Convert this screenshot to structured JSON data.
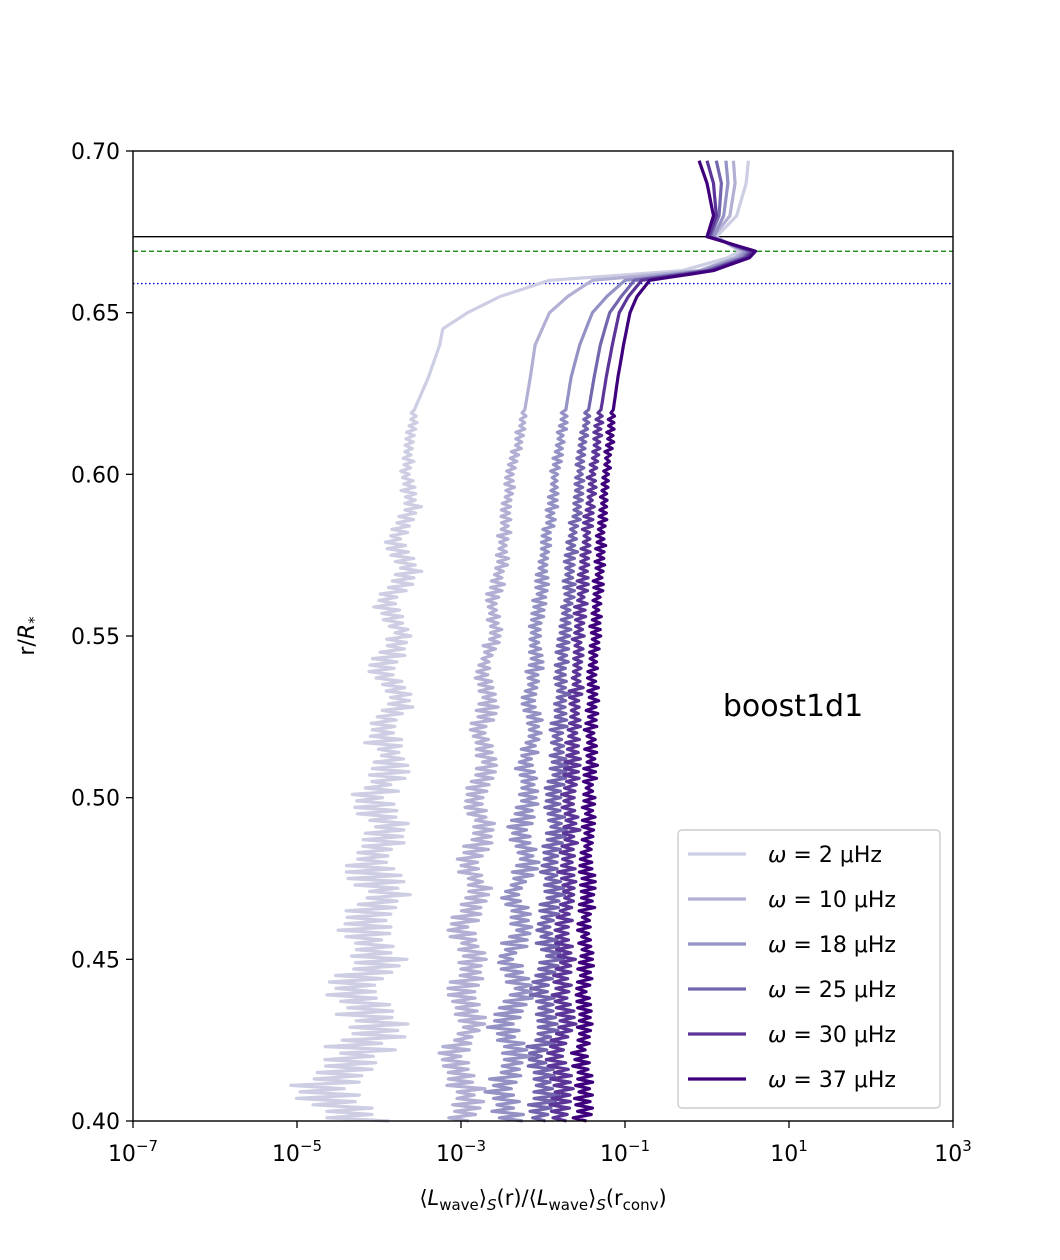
{
  "chart_data": {
    "type": "line",
    "annotation": "boost1d1",
    "xlabel_parts": {
      "open": "⟨",
      "L": "L",
      "sub": "wave",
      "close": "⟩",
      "S": "S",
      "arg_r": "(r)/⟨",
      "arg_rconv": "(r",
      "conv": "conv",
      "end": ")"
    },
    "ylabel_parts": {
      "r": "r/",
      "R": "R",
      "star": "*"
    },
    "x_scale": "log",
    "xlim": [
      1e-07,
      1000
    ],
    "ylim": [
      0.4,
      0.7
    ],
    "x_ticks": [
      {
        "base": "10",
        "exp": "−7",
        "value": 1e-07
      },
      {
        "base": "10",
        "exp": "−5",
        "value": 1e-05
      },
      {
        "base": "10",
        "exp": "−3",
        "value": 0.001
      },
      {
        "base": "10",
        "exp": "−1",
        "value": 0.1
      },
      {
        "base": "10",
        "exp": "1",
        "value": 10
      },
      {
        "base": "10",
        "exp": "3",
        "value": 1000
      }
    ],
    "y_ticks": [
      "0.40",
      "0.45",
      "0.50",
      "0.55",
      "0.60",
      "0.65",
      "0.70"
    ],
    "y_tick_values": [
      0.4,
      0.45,
      0.5,
      0.55,
      0.6,
      0.65,
      0.7
    ],
    "hlines": [
      {
        "y": 0.6735,
        "style": "solid",
        "color": "#000000"
      },
      {
        "y": 0.669,
        "style": "dashed",
        "color": "#008000"
      },
      {
        "y": 0.659,
        "style": "dotted",
        "color": "#0000cc"
      }
    ],
    "legend_position": "lower-right",
    "series": [
      {
        "name": "ω = 2 μHz",
        "symbol": "ω",
        "label": " = 2 μHz",
        "color": "#cdcde4",
        "points": [
          [
            0.4,
            6e-05
          ],
          [
            0.41,
            2e-05
          ],
          [
            0.42,
            5e-05
          ],
          [
            0.43,
            0.0001
          ],
          [
            0.44,
            5e-05
          ],
          [
            0.45,
            0.0001
          ],
          [
            0.46,
            6e-05
          ],
          [
            0.47,
            0.00012
          ],
          [
            0.48,
            7e-05
          ],
          [
            0.49,
            0.00015
          ],
          [
            0.5,
            8e-05
          ],
          [
            0.51,
            0.00016
          ],
          [
            0.52,
            0.0001
          ],
          [
            0.53,
            0.00018
          ],
          [
            0.54,
            0.00011
          ],
          [
            0.55,
            0.0002
          ],
          [
            0.56,
            0.00012
          ],
          [
            0.57,
            0.00024
          ],
          [
            0.58,
            0.00015
          ],
          [
            0.59,
            0.00026
          ],
          [
            0.6,
            0.00021
          ],
          [
            0.61,
            0.00024
          ],
          [
            0.62,
            0.00027
          ],
          [
            0.63,
            0.0004
          ],
          [
            0.64,
            0.00055
          ],
          [
            0.645,
            0.0006
          ],
          [
            0.65,
            0.0012
          ],
          [
            0.655,
            0.003
          ],
          [
            0.66,
            0.012
          ],
          [
            0.663,
            0.5
          ],
          [
            0.667,
            1.8
          ],
          [
            0.669,
            2.5
          ],
          [
            0.6735,
            1.3
          ],
          [
            0.68,
            2.3
          ],
          [
            0.69,
            3.0
          ],
          [
            0.697,
            3.2
          ]
        ]
      },
      {
        "name": "ω = 10 μHz",
        "symbol": "ω",
        "label": " = 10 μHz",
        "color": "#b1afd3",
        "points": [
          [
            0.4,
            0.001
          ],
          [
            0.41,
            0.0012
          ],
          [
            0.42,
            0.0007
          ],
          [
            0.43,
            0.0015
          ],
          [
            0.44,
            0.001
          ],
          [
            0.45,
            0.0015
          ],
          [
            0.46,
            0.001
          ],
          [
            0.47,
            0.0018
          ],
          [
            0.48,
            0.0012
          ],
          [
            0.49,
            0.002
          ],
          [
            0.5,
            0.0014
          ],
          [
            0.51,
            0.0022
          ],
          [
            0.52,
            0.0016
          ],
          [
            0.53,
            0.0023
          ],
          [
            0.54,
            0.0018
          ],
          [
            0.55,
            0.0026
          ],
          [
            0.56,
            0.0024
          ],
          [
            0.57,
            0.003
          ],
          [
            0.58,
            0.0033
          ],
          [
            0.59,
            0.0036
          ],
          [
            0.6,
            0.004
          ],
          [
            0.61,
            0.005
          ],
          [
            0.62,
            0.006
          ],
          [
            0.63,
            0.007
          ],
          [
            0.64,
            0.008
          ],
          [
            0.65,
            0.012
          ],
          [
            0.655,
            0.02
          ],
          [
            0.66,
            0.04
          ],
          [
            0.663,
            0.8
          ],
          [
            0.667,
            2.2
          ],
          [
            0.669,
            2.8
          ],
          [
            0.6735,
            1.2
          ],
          [
            0.68,
            1.9
          ],
          [
            0.69,
            2.2
          ],
          [
            0.697,
            2.1
          ]
        ]
      },
      {
        "name": "ω = 18 μHz",
        "symbol": "ω",
        "label": " = 18 μHz",
        "color": "#9491c5",
        "points": [
          [
            0.4,
            0.004
          ],
          [
            0.41,
            0.003
          ],
          [
            0.42,
            0.005
          ],
          [
            0.43,
            0.003
          ],
          [
            0.44,
            0.006
          ],
          [
            0.45,
            0.0035
          ],
          [
            0.46,
            0.006
          ],
          [
            0.47,
            0.004
          ],
          [
            0.48,
            0.007
          ],
          [
            0.49,
            0.005
          ],
          [
            0.5,
            0.007
          ],
          [
            0.51,
            0.006
          ],
          [
            0.52,
            0.008
          ],
          [
            0.53,
            0.007
          ],
          [
            0.54,
            0.008
          ],
          [
            0.55,
            0.008
          ],
          [
            0.56,
            0.009
          ],
          [
            0.57,
            0.01
          ],
          [
            0.58,
            0.011
          ],
          [
            0.59,
            0.013
          ],
          [
            0.6,
            0.014
          ],
          [
            0.61,
            0.016
          ],
          [
            0.62,
            0.019
          ],
          [
            0.63,
            0.022
          ],
          [
            0.64,
            0.028
          ],
          [
            0.65,
            0.04
          ],
          [
            0.655,
            0.06
          ],
          [
            0.66,
            0.1
          ],
          [
            0.663,
            0.9
          ],
          [
            0.667,
            2.5
          ],
          [
            0.669,
            3.0
          ],
          [
            0.6735,
            1.2
          ],
          [
            0.68,
            1.6
          ],
          [
            0.69,
            1.8
          ],
          [
            0.697,
            1.7
          ]
        ]
      },
      {
        "name": "ω = 25 μHz",
        "symbol": "ω",
        "label": " = 25 μHz",
        "color": "#7466ae",
        "points": [
          [
            0.4,
            0.009
          ],
          [
            0.41,
            0.011
          ],
          [
            0.42,
            0.008
          ],
          [
            0.43,
            0.012
          ],
          [
            0.44,
            0.009
          ],
          [
            0.45,
            0.013
          ],
          [
            0.46,
            0.01
          ],
          [
            0.47,
            0.014
          ],
          [
            0.48,
            0.012
          ],
          [
            0.49,
            0.015
          ],
          [
            0.5,
            0.013
          ],
          [
            0.51,
            0.016
          ],
          [
            0.52,
            0.015
          ],
          [
            0.53,
            0.017
          ],
          [
            0.54,
            0.017
          ],
          [
            0.55,
            0.018
          ],
          [
            0.56,
            0.02
          ],
          [
            0.57,
            0.021
          ],
          [
            0.58,
            0.023
          ],
          [
            0.59,
            0.026
          ],
          [
            0.6,
            0.028
          ],
          [
            0.61,
            0.031
          ],
          [
            0.62,
            0.036
          ],
          [
            0.63,
            0.042
          ],
          [
            0.64,
            0.05
          ],
          [
            0.65,
            0.065
          ],
          [
            0.655,
            0.09
          ],
          [
            0.66,
            0.13
          ],
          [
            0.663,
            1.0
          ],
          [
            0.667,
            2.8
          ],
          [
            0.669,
            3.3
          ],
          [
            0.6735,
            1.1
          ],
          [
            0.68,
            1.4
          ],
          [
            0.69,
            1.5
          ],
          [
            0.697,
            1.3
          ]
        ]
      },
      {
        "name": "ω = 30 μHz",
        "symbol": "ω",
        "label": " = 30 μHz",
        "color": "#5b3597",
        "points": [
          [
            0.4,
            0.015
          ],
          [
            0.41,
            0.018
          ],
          [
            0.42,
            0.014
          ],
          [
            0.43,
            0.019
          ],
          [
            0.44,
            0.016
          ],
          [
            0.45,
            0.02
          ],
          [
            0.46,
            0.017
          ],
          [
            0.47,
            0.021
          ],
          [
            0.48,
            0.019
          ],
          [
            0.49,
            0.022
          ],
          [
            0.5,
            0.021
          ],
          [
            0.51,
            0.023
          ],
          [
            0.52,
            0.023
          ],
          [
            0.53,
            0.025
          ],
          [
            0.54,
            0.026
          ],
          [
            0.55,
            0.027
          ],
          [
            0.56,
            0.029
          ],
          [
            0.57,
            0.031
          ],
          [
            0.58,
            0.034
          ],
          [
            0.59,
            0.037
          ],
          [
            0.6,
            0.04
          ],
          [
            0.61,
            0.045
          ],
          [
            0.62,
            0.051
          ],
          [
            0.63,
            0.059
          ],
          [
            0.64,
            0.07
          ],
          [
            0.65,
            0.085
          ],
          [
            0.655,
            0.11
          ],
          [
            0.66,
            0.16
          ],
          [
            0.663,
            1.1
          ],
          [
            0.667,
            3.0
          ],
          [
            0.669,
            3.6
          ],
          [
            0.6735,
            1.05
          ],
          [
            0.68,
            1.3
          ],
          [
            0.69,
            1.2
          ],
          [
            0.697,
            1.0
          ]
        ]
      },
      {
        "name": "ω = 37 μHz",
        "symbol": "ω",
        "label": " = 37 μHz",
        "color": "#3f007d",
        "points": [
          [
            0.4,
            0.03
          ],
          [
            0.41,
            0.032
          ],
          [
            0.42,
            0.028
          ],
          [
            0.43,
            0.034
          ],
          [
            0.44,
            0.03
          ],
          [
            0.45,
            0.035
          ],
          [
            0.46,
            0.032
          ],
          [
            0.47,
            0.036
          ],
          [
            0.48,
            0.034
          ],
          [
            0.49,
            0.037
          ],
          [
            0.5,
            0.036
          ],
          [
            0.51,
            0.038
          ],
          [
            0.52,
            0.038
          ],
          [
            0.53,
            0.04
          ],
          [
            0.54,
            0.041
          ],
          [
            0.55,
            0.043
          ],
          [
            0.56,
            0.045
          ],
          [
            0.57,
            0.048
          ],
          [
            0.58,
            0.051
          ],
          [
            0.59,
            0.055
          ],
          [
            0.6,
            0.059
          ],
          [
            0.61,
            0.065
          ],
          [
            0.62,
            0.072
          ],
          [
            0.63,
            0.082
          ],
          [
            0.64,
            0.096
          ],
          [
            0.65,
            0.115
          ],
          [
            0.655,
            0.14
          ],
          [
            0.66,
            0.2
          ],
          [
            0.663,
            1.2
          ],
          [
            0.667,
            3.3
          ],
          [
            0.669,
            3.9
          ],
          [
            0.6735,
            1.0
          ],
          [
            0.68,
            1.2
          ],
          [
            0.69,
            1.0
          ],
          [
            0.697,
            0.8
          ]
        ]
      }
    ]
  }
}
